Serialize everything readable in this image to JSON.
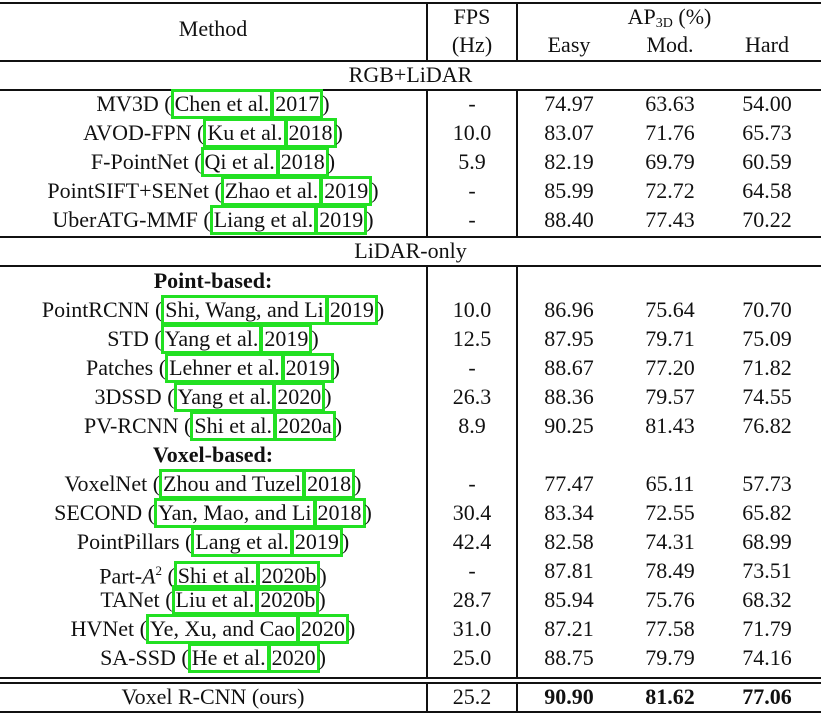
{
  "header": {
    "method": "Method",
    "fps_top": "FPS",
    "fps_bottom": "(Hz)",
    "ap_main": "AP",
    "ap_sub": "3D",
    "ap_unit": " (%)",
    "easy": "Easy",
    "mod": "Mod.",
    "hard": "Hard"
  },
  "groups": {
    "rgb_lidar": "RGB+LiDAR",
    "lidar_only": "LiDAR-only",
    "point_based": "Point-based:",
    "voxel_based": "Voxel-based:"
  },
  "rows": [
    {
      "name": "MV3D",
      "authors": "Chen et al.",
      "year": "2017",
      "fps": "-",
      "easy": "74.97",
      "mod": "63.63",
      "hard": "54.00"
    },
    {
      "name": "AVOD-FPN",
      "authors": "Ku et al.",
      "year": "2018",
      "fps": "10.0",
      "easy": "83.07",
      "mod": "71.76",
      "hard": "65.73"
    },
    {
      "name": "F-PointNet",
      "authors": "Qi et al.",
      "year": "2018",
      "fps": "5.9",
      "easy": "82.19",
      "mod": "69.79",
      "hard": "60.59"
    },
    {
      "name": "PointSIFT+SENet",
      "authors": "Zhao et al.",
      "year": "2019",
      "fps": "-",
      "easy": "85.99",
      "mod": "72.72",
      "hard": "64.58"
    },
    {
      "name": "UberATG-MMF",
      "authors": "Liang et al.",
      "year": "2019",
      "fps": "-",
      "easy": "88.40",
      "mod": "77.43",
      "hard": "70.22"
    },
    {
      "name": "PointRCNN",
      "authors": "Shi, Wang, and Li",
      "year": "2019",
      "fps": "10.0",
      "easy": "86.96",
      "mod": "75.64",
      "hard": "70.70"
    },
    {
      "name": "STD",
      "authors": "Yang et al.",
      "year": "2019",
      "fps": "12.5",
      "easy": "87.95",
      "mod": "79.71",
      "hard": "75.09"
    },
    {
      "name": "Patches",
      "authors": "Lehner et al.",
      "year": "2019",
      "fps": "-",
      "easy": "88.67",
      "mod": "77.20",
      "hard": "71.82"
    },
    {
      "name": "3DSSD",
      "authors": "Yang et al.",
      "year": "2020",
      "fps": "26.3",
      "easy": "88.36",
      "mod": "79.57",
      "hard": "74.55"
    },
    {
      "name": "PV-RCNN",
      "authors": "Shi et al.",
      "year": "2020a",
      "fps": "8.9",
      "easy": "90.25",
      "mod": "81.43",
      "hard": "76.82"
    },
    {
      "name": "VoxelNet",
      "authors": "Zhou and Tuzel",
      "year": "2018",
      "fps": "-",
      "easy": "77.47",
      "mod": "65.11",
      "hard": "57.73"
    },
    {
      "name": "SECOND",
      "authors": "Yan, Mao, and Li",
      "year": "2018",
      "fps": "30.4",
      "easy": "83.34",
      "mod": "72.55",
      "hard": "65.82"
    },
    {
      "name": "PointPillars",
      "authors": "Lang et al.",
      "year": "2019",
      "fps": "42.4",
      "easy": "82.58",
      "mod": "74.31",
      "hard": "68.99"
    },
    {
      "name": "Part-",
      "name_math": "A",
      "name_sup": "2",
      "authors": "Shi et al.",
      "year": "2020b",
      "fps": "-",
      "easy": "87.81",
      "mod": "78.49",
      "hard": "73.51"
    },
    {
      "name": "TANet",
      "authors": "Liu et al.",
      "year": "2020b",
      "fps": "28.7",
      "easy": "85.94",
      "mod": "75.76",
      "hard": "68.32"
    },
    {
      "name": "HVNet",
      "authors": "Ye, Xu, and Cao",
      "year": "2020",
      "fps": "31.0",
      "easy": "87.21",
      "mod": "77.58",
      "hard": "71.79"
    },
    {
      "name": "SA-SSD",
      "authors": "He et al.",
      "year": "2020",
      "fps": "25.0",
      "easy": "88.75",
      "mod": "79.79",
      "hard": "74.16"
    }
  ],
  "ours": {
    "name": "Voxel R-CNN (ours)",
    "fps": "25.2",
    "easy": "90.90",
    "mod": "81.62",
    "hard": "77.06"
  },
  "punct": {
    "open": " (",
    "close": ")",
    "space": " "
  },
  "colors": {
    "citation_box": "#22e022",
    "rule": "#111111"
  }
}
